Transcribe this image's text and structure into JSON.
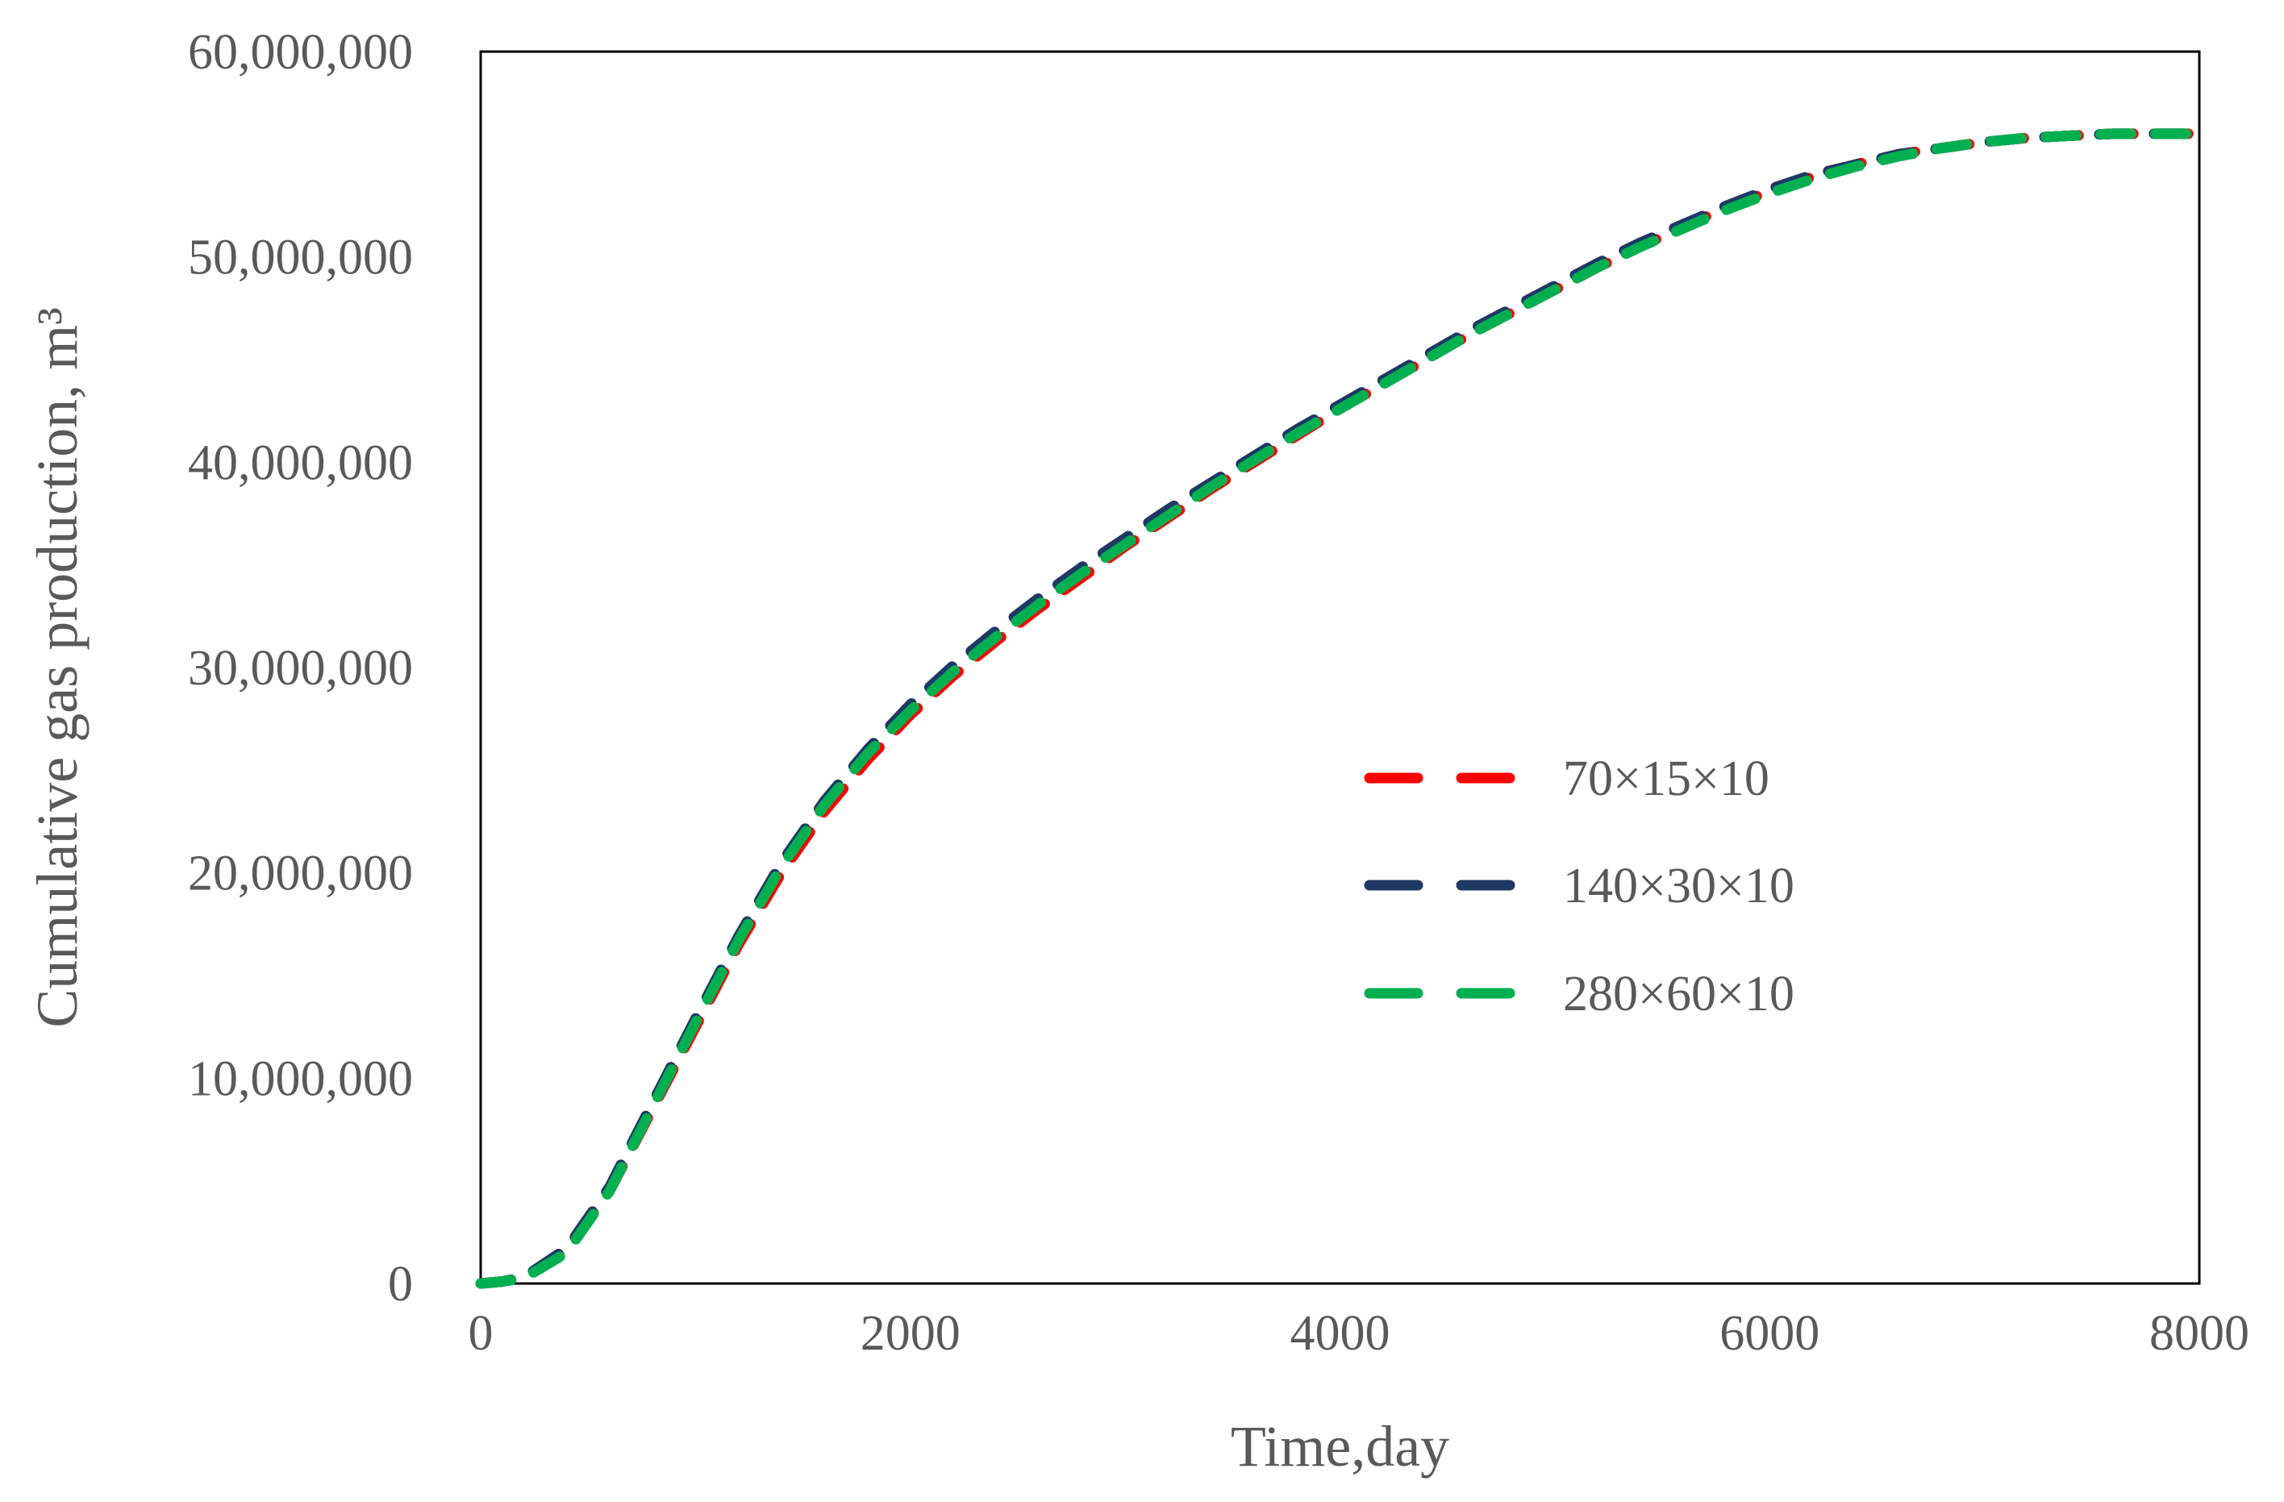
{
  "chart_data": {
    "type": "line",
    "xlabel": "Time,day",
    "ylabel": "Cumulative gas production, m³",
    "xlim": [
      0,
      8000
    ],
    "ylim": [
      0,
      60000000
    ],
    "xticks": [
      "0",
      "2000",
      "4000",
      "6000",
      "8000"
    ],
    "yticks": [
      "0",
      "10,000,000",
      "20,000,000",
      "30,000,000",
      "40,000,000",
      "50,000,000",
      "60,000,000"
    ],
    "grid": false,
    "legend_position": "right",
    "series": [
      {
        "name": "70×15×10",
        "color": "#ff0000",
        "x": [
          0,
          100,
          200,
          400,
          600,
          800,
          1000,
          1200,
          1400,
          1600,
          1800,
          2000,
          2200,
          2400,
          2600,
          2800,
          3000,
          3200,
          3400,
          3600,
          3800,
          4000,
          4200,
          4400,
          4600,
          4800,
          5000,
          5200,
          5400,
          5600,
          5800,
          6000,
          6200,
          6400,
          6600,
          6800,
          7000,
          7200,
          7400,
          7600,
          7800,
          8000
        ],
        "y": [
          0,
          100000,
          300000,
          1600000,
          4500000,
          8500000,
          12500000,
          16500000,
          20000000,
          23000000,
          25500000,
          27700000,
          29600000,
          31300000,
          32900000,
          34400000,
          35900000,
          37300000,
          38700000,
          40000000,
          41300000,
          42600000,
          43800000,
          45000000,
          46200000,
          47300000,
          48400000,
          49500000,
          50500000,
          51500000,
          52400000,
          53200000,
          53900000,
          54500000,
          55000000,
          55300000,
          55600000,
          55800000,
          55900000,
          56000000,
          56000000,
          56000000
        ]
      },
      {
        "name": "140×30×10",
        "color": "#1f3864",
        "x": [
          0,
          100,
          200,
          400,
          600,
          800,
          1000,
          1200,
          1400,
          1600,
          1800,
          2000,
          2200,
          2400,
          2600,
          2800,
          3000,
          3200,
          3400,
          3600,
          3800,
          4000,
          4200,
          4400,
          4600,
          4800,
          5000,
          5200,
          5400,
          5600,
          5800,
          6000,
          6200,
          6400,
          6600,
          6800,
          7000,
          7200,
          7400,
          7600,
          7800,
          8000
        ],
        "y": [
          0,
          100000,
          300000,
          1700000,
          4700000,
          8800000,
          12900000,
          16900000,
          20500000,
          23500000,
          26000000,
          28200000,
          30100000,
          31800000,
          33400000,
          34900000,
          36300000,
          37700000,
          39000000,
          40300000,
          41600000,
          42800000,
          44000000,
          45200000,
          46400000,
          47500000,
          48600000,
          49700000,
          50700000,
          51600000,
          52500000,
          53300000,
          54000000,
          54500000,
          55000000,
          55300000,
          55600000,
          55800000,
          55900000,
          56000000,
          56000000,
          56000000
        ]
      },
      {
        "name": "280×60×10",
        "color": "#00b050",
        "x": [
          0,
          100,
          200,
          400,
          600,
          800,
          1000,
          1200,
          1400,
          1600,
          1800,
          2000,
          2200,
          2400,
          2600,
          2800,
          3000,
          3200,
          3400,
          3600,
          3800,
          4000,
          4200,
          4400,
          4600,
          4800,
          5000,
          5200,
          5400,
          5600,
          5800,
          6000,
          6200,
          6400,
          6600,
          6800,
          7000,
          7200,
          7400,
          7600,
          7800,
          8000
        ],
        "y": [
          0,
          100000,
          250000,
          1500000,
          4500000,
          8600000,
          12700000,
          16700000,
          20300000,
          23300000,
          25800000,
          27900000,
          29800000,
          31500000,
          33100000,
          34600000,
          36000000,
          37400000,
          38800000,
          40100000,
          41400000,
          42600000,
          43800000,
          45000000,
          46200000,
          47300000,
          48400000,
          49500000,
          50500000,
          51400000,
          52300000,
          53100000,
          53800000,
          54400000,
          54900000,
          55300000,
          55600000,
          55800000,
          55900000,
          56000000,
          56000000,
          56000000
        ]
      }
    ]
  }
}
